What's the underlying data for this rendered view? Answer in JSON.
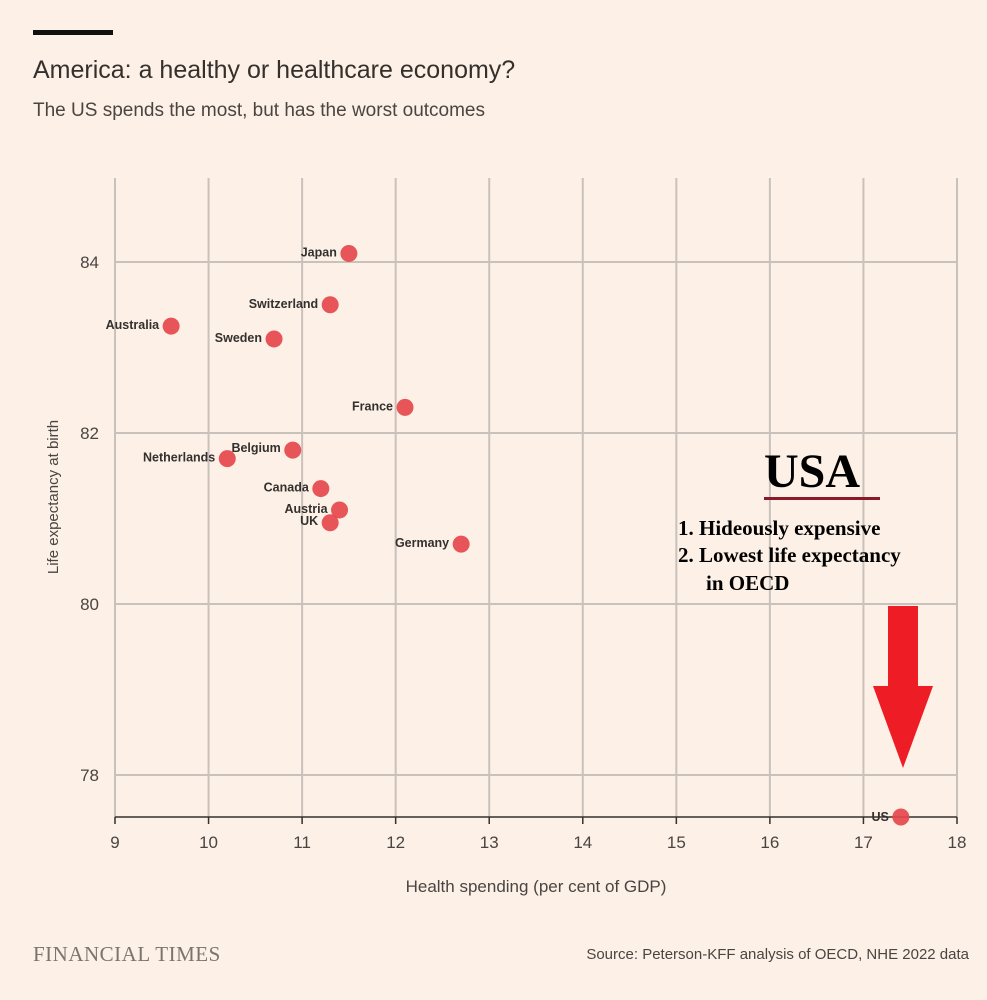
{
  "header": {
    "title": "America: a healthy or healthcare economy?",
    "subtitle": "The US spends the most, but has the worst outcomes"
  },
  "footer": {
    "brand": "FINANCIAL TIMES",
    "source": "Source: Peterson-KFF analysis of OECD, NHE 2022 data"
  },
  "annotation": {
    "heading": "USA",
    "line1": "1. Hideously expensive",
    "line2": "2. Lowest life expectancy",
    "line3": "in OECD"
  },
  "colors": {
    "point": "#e5484d",
    "arrow": "#ee1c25",
    "grid": "#c9c2bc",
    "axis": "#33302e"
  },
  "chart_data": {
    "type": "scatter",
    "xlabel": "Health spending (per cent of GDP)",
    "ylabel": "Life expectancy at birth",
    "xlim": [
      9,
      18
    ],
    "ylim": [
      77.5,
      85
    ],
    "xticks": [
      9,
      10,
      11,
      12,
      13,
      14,
      15,
      16,
      17,
      18
    ],
    "yticks": [
      78,
      80,
      82,
      84
    ],
    "grid": true,
    "points": [
      {
        "label": "Japan",
        "x": 11.5,
        "y": 84.1
      },
      {
        "label": "Switzerland",
        "x": 11.3,
        "y": 83.5
      },
      {
        "label": "Australia",
        "x": 9.6,
        "y": 83.25
      },
      {
        "label": "Sweden",
        "x": 10.7,
        "y": 83.1
      },
      {
        "label": "France",
        "x": 12.1,
        "y": 82.3
      },
      {
        "label": "Belgium",
        "x": 10.9,
        "y": 81.8
      },
      {
        "label": "Netherlands",
        "x": 10.2,
        "y": 81.7
      },
      {
        "label": "Canada",
        "x": 11.2,
        "y": 81.35
      },
      {
        "label": "Austria",
        "x": 11.4,
        "y": 81.1
      },
      {
        "label": "UK",
        "x": 11.3,
        "y": 80.95
      },
      {
        "label": "Germany",
        "x": 12.7,
        "y": 80.7
      },
      {
        "label": "US",
        "x": 17.4,
        "y": 77.5
      }
    ]
  }
}
